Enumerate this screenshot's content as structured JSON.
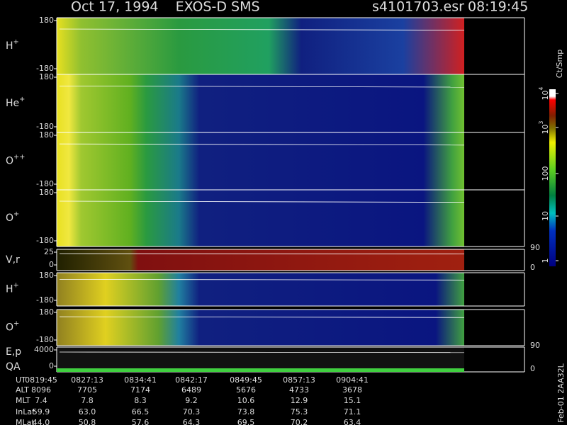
{
  "header": {
    "title": "Oct 17, 1994    EXOS-D SMS",
    "file": "s4101703.esr",
    "time": "08:19:45"
  },
  "panels": [
    {
      "label": {
        "base": "H",
        "sup": "+"
      },
      "left_ticks": [
        "180",
        "-180"
      ],
      "right_ticks": []
    },
    {
      "label": {
        "base": "He",
        "sup": "+"
      },
      "left_ticks": [
        "180",
        "-180"
      ],
      "right_ticks": []
    },
    {
      "label": {
        "base": "O",
        "sup": "++"
      },
      "left_ticks": [
        "180",
        "-180"
      ],
      "right_ticks": []
    },
    {
      "label": {
        "base": "O",
        "sup": "+"
      },
      "left_ticks": [
        "180",
        "-180"
      ],
      "right_ticks": []
    },
    {
      "label": {
        "base": "V,r",
        "sup": ""
      },
      "left_ticks": [
        "25",
        "0"
      ],
      "right_ticks": [
        "90",
        "0"
      ]
    },
    {
      "label": {
        "base": "H",
        "sup": "+"
      },
      "left_ticks": [
        "180",
        "-180"
      ],
      "right_ticks": []
    },
    {
      "label": {
        "base": "O",
        "sup": "+"
      },
      "left_ticks": [
        "180",
        "-180"
      ],
      "right_ticks": []
    },
    {
      "label": {
        "base": "E,p",
        "sup": ""
      },
      "label2": "QA",
      "left_ticks": [
        "4000",
        "0"
      ],
      "right_ticks": [
        "90",
        "0"
      ]
    }
  ],
  "colorbar": {
    "unit": "Ct/Smp",
    "ticks": [
      {
        "base": "10",
        "sup": "4"
      },
      {
        "base": "10",
        "sup": "3"
      },
      {
        "base": "100",
        "sup": ""
      },
      {
        "base": "10",
        "sup": ""
      },
      {
        "base": "1",
        "sup": ""
      }
    ]
  },
  "table": {
    "rows": [
      [
        "UT",
        "0819:45",
        "0827:13",
        "0834:41",
        "0842:17",
        "0849:45",
        "0857:13",
        "0904:41"
      ],
      [
        "ALT",
        "8096",
        "7705",
        "7174",
        "6489",
        "5676",
        "4733",
        "3678"
      ],
      [
        "MLT",
        "7.4",
        "7.8",
        "8.3",
        "9.2",
        "10.6",
        "12.9",
        "15.1"
      ],
      [
        "InLat",
        "59.9",
        "63.0",
        "66.5",
        "70.3",
        "73.8",
        "75.3",
        "71.1"
      ],
      [
        "MLat",
        "44.0",
        "50.8",
        "57.6",
        "64.3",
        "69.5",
        "70.2",
        "63.4"
      ]
    ]
  },
  "footer": "Feb-01 2AA32L"
}
